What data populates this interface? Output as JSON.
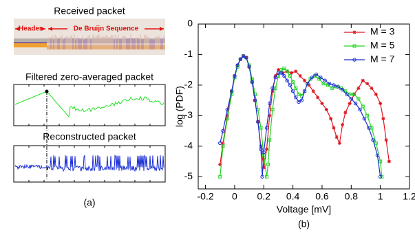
{
  "panel_a": {
    "received_title": "Received packet",
    "header_label": "Header",
    "sequence_label": "De Bruijn Sequence",
    "filtered_title": "Filtered zero-averaged packet",
    "reconstructed_title": "Reconstructed packet",
    "caption": "(a)"
  },
  "chart_data": {
    "type": "line",
    "caption": "(b)",
    "xlabel": "Voltage [mV]",
    "ylabel": "log (PDF)",
    "xlim": [
      -0.25,
      1.2
    ],
    "ylim": [
      -5.4,
      0
    ],
    "xticks": [
      -0.2,
      0,
      0.2,
      0.4,
      0.6,
      0.8,
      1,
      1.2
    ],
    "yticks": [
      0,
      -1,
      -2,
      -3,
      -4,
      -5
    ],
    "legend": "upper right",
    "series": [
      {
        "name": "M = 3",
        "color": "#e0141e",
        "marker": "star",
        "x": [
          -0.1,
          -0.08,
          -0.05,
          -0.02,
          0,
          0.02,
          0.04,
          0.06,
          0.08,
          0.1,
          0.12,
          0.14,
          0.16,
          0.18,
          0.2,
          0.22,
          0.24,
          0.26,
          0.28,
          0.3,
          0.33,
          0.36,
          0.39,
          0.42,
          0.45,
          0.48,
          0.51,
          0.54,
          0.57,
          0.6,
          0.63,
          0.66,
          0.68,
          0.7,
          0.72,
          0.74,
          0.76,
          0.79,
          0.82,
          0.85,
          0.88,
          0.91,
          0.94,
          0.97,
          1.0,
          1.02,
          1.04,
          1.06
        ],
        "values": [
          -4.6,
          -3.9,
          -3.0,
          -2.2,
          -1.7,
          -1.35,
          -1.15,
          -1.05,
          -1.1,
          -1.4,
          -1.9,
          -2.5,
          -3.2,
          -4.0,
          -4.7,
          -4.1,
          -3.0,
          -2.2,
          -1.7,
          -1.5,
          -1.6,
          -1.55,
          -1.6,
          -1.55,
          -1.7,
          -1.85,
          -2.0,
          -2.2,
          -2.4,
          -2.6,
          -2.8,
          -3.1,
          -3.4,
          -3.7,
          -3.9,
          -3.3,
          -2.9,
          -2.6,
          -2.3,
          -2.1,
          -1.85,
          -1.95,
          -2.1,
          -2.3,
          -2.6,
          -3.1,
          -3.8,
          -4.5
        ]
      },
      {
        "name": "M = 5",
        "color": "#22d422",
        "marker": "square",
        "x": [
          -0.1,
          -0.08,
          -0.05,
          -0.02,
          0,
          0.02,
          0.04,
          0.06,
          0.08,
          0.1,
          0.12,
          0.14,
          0.16,
          0.18,
          0.2,
          0.22,
          0.23,
          0.24,
          0.26,
          0.28,
          0.3,
          0.32,
          0.34,
          0.36,
          0.38,
          0.4,
          0.42,
          0.44,
          0.46,
          0.48,
          0.5,
          0.52,
          0.55,
          0.58,
          0.61,
          0.64,
          0.67,
          0.7,
          0.73,
          0.76,
          0.79,
          0.82,
          0.85,
          0.88,
          0.91,
          0.94,
          0.97,
          1.0,
          1.01
        ],
        "values": [
          -5.0,
          -4.0,
          -3.1,
          -2.3,
          -1.75,
          -1.4,
          -1.15,
          -1.05,
          -1.1,
          -1.35,
          -1.8,
          -2.3,
          -2.8,
          -3.4,
          -4.3,
          -5.0,
          -4.6,
          -3.8,
          -2.8,
          -2.1,
          -1.7,
          -1.5,
          -1.45,
          -1.55,
          -1.7,
          -1.9,
          -2.1,
          -2.3,
          -2.35,
          -2.2,
          -1.95,
          -1.8,
          -1.7,
          -1.8,
          -1.95,
          -2.0,
          -2.1,
          -2.05,
          -2.1,
          -2.2,
          -2.3,
          -2.3,
          -2.45,
          -2.7,
          -3.0,
          -3.4,
          -3.9,
          -4.5,
          -5.0
        ]
      },
      {
        "name": "M = 7",
        "color": "#1a2ed6",
        "marker": "circle",
        "x": [
          -0.1,
          -0.08,
          -0.05,
          -0.02,
          0,
          0.02,
          0.04,
          0.06,
          0.08,
          0.1,
          0.12,
          0.14,
          0.16,
          0.18,
          0.19,
          0.2,
          0.22,
          0.24,
          0.26,
          0.28,
          0.3,
          0.32,
          0.34,
          0.36,
          0.38,
          0.4,
          0.42,
          0.44,
          0.46,
          0.48,
          0.5,
          0.53,
          0.56,
          0.59,
          0.62,
          0.65,
          0.68,
          0.71,
          0.74,
          0.77,
          0.8,
          0.83,
          0.86,
          0.89,
          0.92,
          0.95,
          0.98,
          1.0
        ],
        "values": [
          -3.9,
          -3.5,
          -2.8,
          -2.2,
          -1.7,
          -1.35,
          -1.15,
          -1.05,
          -1.1,
          -1.4,
          -1.9,
          -2.5,
          -3.2,
          -4.1,
          -5.0,
          -4.2,
          -3.4,
          -2.6,
          -2.1,
          -1.75,
          -1.6,
          -1.6,
          -1.7,
          -1.85,
          -2.0,
          -2.2,
          -2.4,
          -2.55,
          -2.5,
          -2.2,
          -1.95,
          -1.75,
          -1.65,
          -1.75,
          -1.85,
          -1.95,
          -2.0,
          -2.05,
          -2.15,
          -2.3,
          -2.45,
          -2.6,
          -2.8,
          -3.1,
          -3.4,
          -3.8,
          -4.3,
          -5.0
        ]
      }
    ]
  }
}
